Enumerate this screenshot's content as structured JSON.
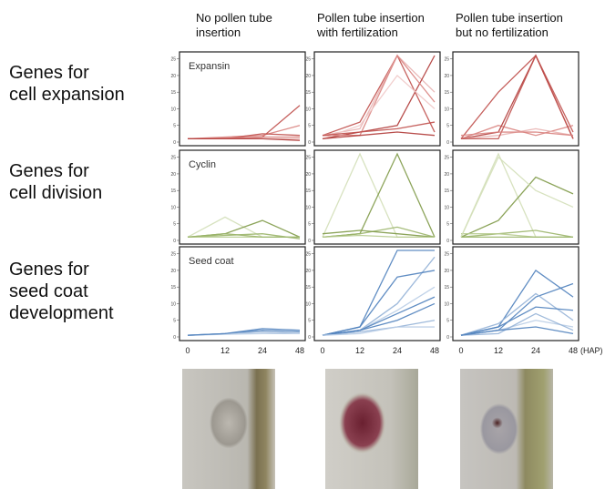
{
  "column_headers": [
    [
      "No pollen tube",
      "insertion"
    ],
    [
      "Pollen tube insertion",
      "with fertilization"
    ],
    [
      "Pollen tube insertion",
      "but no fertilization"
    ]
  ],
  "row_labels": [
    [
      "Genes for",
      "cell expansion"
    ],
    [
      "Genes for",
      "cell division"
    ],
    [
      "Genes for",
      "seed coat",
      "development"
    ]
  ],
  "x_categories": [
    "0",
    "12",
    "24",
    "48"
  ],
  "x_unit": "(HAP)",
  "chart_data": [
    {
      "type": "line",
      "title": "Expansin",
      "ylim": [
        0,
        26
      ],
      "yticks": [
        0,
        5,
        10,
        15,
        20,
        25
      ],
      "series": [
        {
          "color": "#c0504d",
          "values": [
            1,
            1,
            1.5,
            11
          ]
        },
        {
          "color": "#d9837f",
          "values": [
            1,
            1.5,
            2,
            5
          ]
        },
        {
          "color": "#c0504d",
          "values": [
            1,
            1,
            2.5,
            2
          ]
        },
        {
          "color": "#e8b3b1",
          "values": [
            1,
            1,
            1,
            1
          ]
        },
        {
          "color": "#d9837f",
          "values": [
            1,
            1.2,
            1.5,
            1.5
          ]
        },
        {
          "color": "#b03a37",
          "values": [
            1,
            1,
            1,
            0.5
          ]
        }
      ]
    },
    {
      "type": "line",
      "ylim": [
        0,
        26
      ],
      "yticks": [
        0,
        5,
        10,
        15,
        20,
        25
      ],
      "series": [
        {
          "color": "#c0504d",
          "values": [
            2,
            6,
            26,
            3
          ]
        },
        {
          "color": "#e8b3b1",
          "values": [
            2,
            4,
            26,
            15
          ]
        },
        {
          "color": "#b03a37",
          "values": [
            1,
            3,
            5,
            26
          ]
        },
        {
          "color": "#d9837f",
          "values": [
            2,
            2,
            26,
            12
          ]
        },
        {
          "color": "#f0c8c6",
          "values": [
            1,
            5,
            20,
            10
          ]
        },
        {
          "color": "#c0504d",
          "values": [
            2,
            3,
            4,
            6
          ]
        },
        {
          "color": "#b03a37",
          "values": [
            1,
            2,
            3,
            2
          ]
        }
      ]
    },
    {
      "type": "line",
      "ylim": [
        0,
        26
      ],
      "yticks": [
        0,
        5,
        10,
        15,
        20,
        25
      ],
      "series": [
        {
          "color": "#c0504d",
          "values": [
            1,
            15,
            26,
            3
          ]
        },
        {
          "color": "#d9837f",
          "values": [
            1,
            5,
            2,
            5
          ]
        },
        {
          "color": "#b03a37",
          "values": [
            1,
            3,
            26,
            1
          ]
        },
        {
          "color": "#e8b3b1",
          "values": [
            1,
            2,
            4,
            2
          ]
        },
        {
          "color": "#c0504d",
          "values": [
            1,
            1,
            26,
            1
          ]
        },
        {
          "color": "#d9837f",
          "values": [
            2,
            3,
            3,
            2
          ]
        }
      ]
    },
    {
      "type": "line",
      "title": "Cyclin",
      "ylim": [
        0,
        26
      ],
      "yticks": [
        0,
        5,
        10,
        15,
        20,
        25
      ],
      "series": [
        {
          "color": "#d3dfb8",
          "values": [
            1,
            7,
            1,
            1
          ]
        },
        {
          "color": "#7f9a48",
          "values": [
            1,
            2,
            6,
            1
          ]
        },
        {
          "color": "#9bb56a",
          "values": [
            1,
            1.5,
            2,
            0.5
          ]
        },
        {
          "color": "#b7cb8f",
          "values": [
            1,
            1,
            1,
            1
          ]
        },
        {
          "color": "#9bb56a",
          "values": [
            1,
            2,
            1,
            1
          ]
        }
      ]
    },
    {
      "type": "line",
      "ylim": [
        0,
        26
      ],
      "yticks": [
        0,
        5,
        10,
        15,
        20,
        25
      ],
      "series": [
        {
          "color": "#d3dfb8",
          "values": [
            1,
            26,
            1,
            1
          ]
        },
        {
          "color": "#7f9a48",
          "values": [
            1,
            2,
            26,
            1
          ]
        },
        {
          "color": "#9bb56a",
          "values": [
            1,
            2,
            4,
            1
          ]
        },
        {
          "color": "#7f9a48",
          "values": [
            2,
            3,
            2,
            1
          ]
        },
        {
          "color": "#b7cb8f",
          "values": [
            1,
            1.5,
            1,
            1
          ]
        }
      ]
    },
    {
      "type": "line",
      "ylim": [
        0,
        26
      ],
      "yticks": [
        0,
        5,
        10,
        15,
        20,
        25
      ],
      "series": [
        {
          "color": "#d3dfb8",
          "values": [
            1,
            26,
            1,
            1
          ]
        },
        {
          "color": "#7f9a48",
          "values": [
            1,
            6,
            19,
            14
          ]
        },
        {
          "color": "#9bb56a",
          "values": [
            1,
            2,
            3,
            1
          ]
        },
        {
          "color": "#b7cb8f",
          "values": [
            2,
            2,
            1,
            1
          ]
        },
        {
          "color": "#9bb56a",
          "values": [
            1,
            1,
            1,
            1
          ]
        },
        {
          "color": "#d3dfb8",
          "values": [
            1,
            25,
            15,
            10
          ]
        }
      ]
    },
    {
      "type": "line",
      "title": "Seed coat",
      "ylim": [
        0,
        26
      ],
      "yticks": [
        0,
        5,
        10,
        15,
        20,
        25
      ],
      "series": [
        {
          "color": "#4f81bd",
          "values": [
            0.5,
            1,
            2,
            1.5
          ]
        },
        {
          "color": "#95b3d7",
          "values": [
            0.5,
            1,
            1.5,
            1
          ]
        },
        {
          "color": "#b9cde5",
          "values": [
            0.5,
            0.8,
            1,
            1
          ]
        },
        {
          "color": "#4f81bd",
          "values": [
            0.5,
            1,
            2.5,
            2
          ]
        }
      ]
    },
    {
      "type": "line",
      "ylim": [
        0,
        26
      ],
      "yticks": [
        0,
        5,
        10,
        15,
        20,
        25
      ],
      "series": [
        {
          "color": "#4f81bd",
          "values": [
            0.5,
            3,
            26,
            26
          ]
        },
        {
          "color": "#95b3d7",
          "values": [
            0.5,
            2,
            10,
            24
          ]
        },
        {
          "color": "#4f81bd",
          "values": [
            0.5,
            3,
            18,
            20
          ]
        },
        {
          "color": "#b9cde5",
          "values": [
            0.5,
            2,
            8,
            15
          ]
        },
        {
          "color": "#4f81bd",
          "values": [
            0.5,
            2,
            5,
            10
          ]
        },
        {
          "color": "#95b3d7",
          "values": [
            0.5,
            1.5,
            3,
            5
          ]
        },
        {
          "color": "#4f81bd",
          "values": [
            0.5,
            2,
            7,
            12
          ]
        },
        {
          "color": "#b9cde5",
          "values": [
            0.5,
            1,
            3,
            3
          ]
        }
      ]
    },
    {
      "type": "line",
      "ylim": [
        0,
        26
      ],
      "yticks": [
        0,
        5,
        10,
        15,
        20,
        25
      ],
      "series": [
        {
          "color": "#4f81bd",
          "values": [
            0.5,
            3,
            20,
            12
          ]
        },
        {
          "color": "#4f81bd",
          "values": [
            0.5,
            2,
            12,
            16
          ]
        },
        {
          "color": "#95b3d7",
          "values": [
            0.5,
            4,
            13,
            5
          ]
        },
        {
          "color": "#4f81bd",
          "values": [
            0.5,
            3,
            9,
            8
          ]
        },
        {
          "color": "#b9cde5",
          "values": [
            0.5,
            2,
            5,
            3
          ]
        },
        {
          "color": "#95b3d7",
          "values": [
            0.5,
            1,
            7,
            2
          ]
        },
        {
          "color": "#4f81bd",
          "values": [
            0.5,
            2,
            3,
            1
          ]
        }
      ]
    }
  ]
}
